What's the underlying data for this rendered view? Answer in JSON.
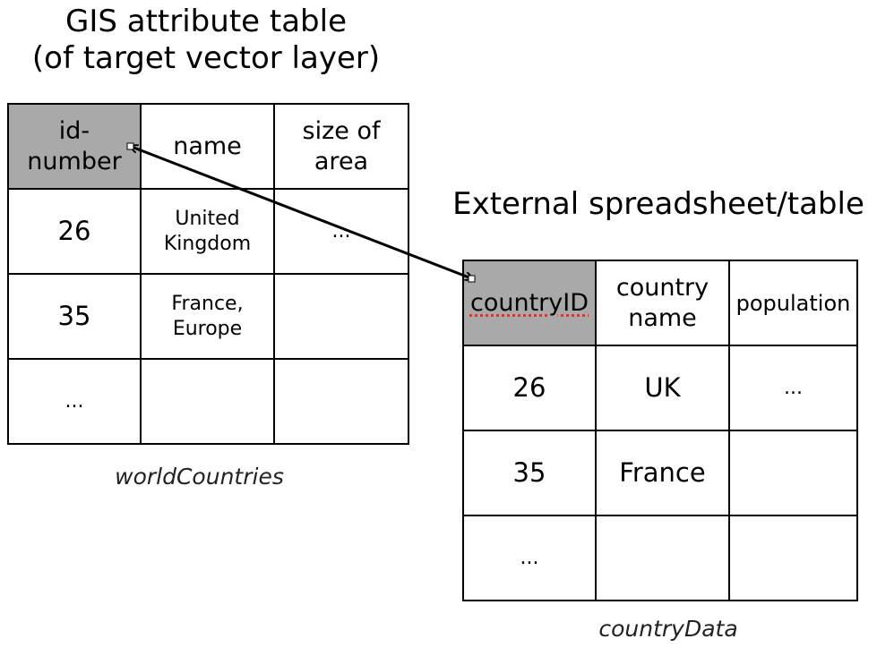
{
  "gis_title_line1": "GIS attribute table",
  "gis_title_line2": "(of target vector layer)",
  "gis_table": {
    "headers": [
      "id-\nnumber",
      "name",
      "size of\narea"
    ],
    "rows": [
      [
        "26",
        "United\nKingdom",
        "..."
      ],
      [
        "35",
        "France,\nEurope",
        ""
      ],
      [
        "...",
        "",
        ""
      ]
    ],
    "caption": "worldCountries"
  },
  "ext_title": "External spreadsheet/table",
  "ext_table": {
    "headers": [
      "countryID",
      "country\nname",
      "population"
    ],
    "rows": [
      [
        "26",
        "UK",
        "..."
      ],
      [
        "35",
        "France",
        ""
      ],
      [
        "...",
        "",
        ""
      ]
    ],
    "caption": "countryData"
  },
  "colors": {
    "key_column_fill": "#a9a9a9",
    "border": "#000000",
    "link_arrow": "#000000"
  }
}
